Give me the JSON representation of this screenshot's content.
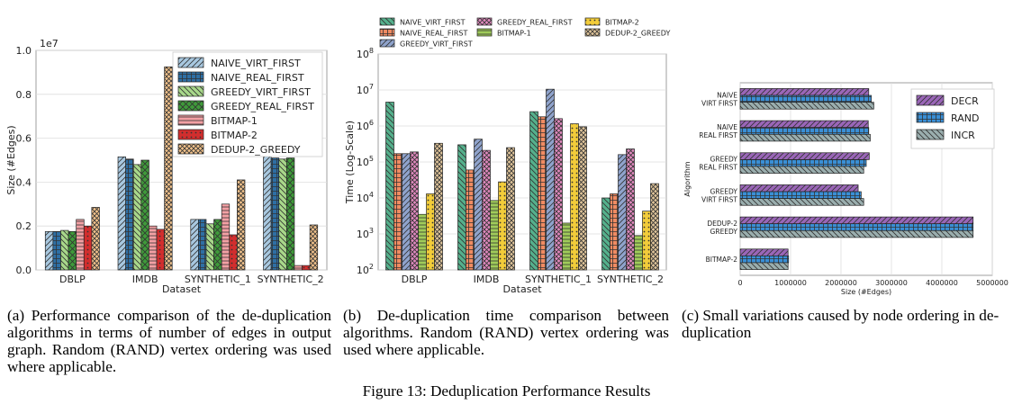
{
  "figure_caption": "Figure 13: Deduplication Performance Results",
  "captions": [
    "(a) Performance comparison of the de-duplication algorithms in terms of number of edges in output graph. Random (RAND) vertex ordering was used where applicable.",
    "(b) De-duplication time comparison between algorithms. Random (RAND) vertex ordering was used where applicable.",
    "(c) Small variations caused by node ordering in de-duplication"
  ],
  "chart_data": [
    {
      "type": "bar",
      "title": "",
      "xlabel": "Dataset",
      "ylabel": "Size (#Edges)",
      "scale_label": "1e7",
      "ylim": [
        0,
        1.0
      ],
      "yticks": [
        0.0,
        0.2,
        0.4,
        0.6,
        0.8,
        1.0
      ],
      "yticklabels": [
        "0.0",
        "0.2",
        "0.4",
        "0.6",
        "0.8",
        "1.0"
      ],
      "grid": true,
      "legend": "top-right",
      "categories": [
        "DBLP",
        "IMDB",
        "SYNTHETIC_1",
        "SYNTHETIC_2"
      ],
      "series": [
        {
          "name": "NAIVE_VIRT_FIRST",
          "values": [
            0.175,
            0.515,
            0.23,
            0.52
          ]
        },
        {
          "name": "NAIVE_REAL_FIRST",
          "values": [
            0.175,
            0.505,
            0.23,
            0.51
          ]
        },
        {
          "name": "GREEDY_VIRT_FIRST",
          "values": [
            0.18,
            0.48,
            0.21,
            0.505
          ]
        },
        {
          "name": "GREEDY_REAL_FIRST",
          "values": [
            0.175,
            0.5,
            0.23,
            0.51
          ]
        },
        {
          "name": "BITMAP-1",
          "values": [
            0.23,
            0.2,
            0.3,
            0.02
          ]
        },
        {
          "name": "BITMAP-2",
          "values": [
            0.2,
            0.185,
            0.16,
            0.02
          ]
        },
        {
          "name": "DEDUP-2_GREEDY",
          "values": [
            0.285,
            0.925,
            0.41,
            0.205
          ]
        }
      ]
    },
    {
      "type": "bar",
      "title": "",
      "xlabel": "Dataset",
      "ylabel": "Time (Log-Scale)",
      "scale": "log",
      "ylim": [
        100,
        100000000
      ],
      "yticklabels": [
        "10^2",
        "10^3",
        "10^4",
        "10^5",
        "10^6",
        "10^7",
        "10^8"
      ],
      "grid": true,
      "legend": "top",
      "categories": [
        "DBLP",
        "IMDB",
        "SYNTHETIC_1",
        "SYNTHETIC_2"
      ],
      "series": [
        {
          "name": "NAIVE_VIRT_FIRST",
          "values": [
            4600000,
            300000,
            2500000,
            10000
          ]
        },
        {
          "name": "NAIVE_REAL_FIRST",
          "values": [
            170000,
            60000,
            1800000,
            13000
          ]
        },
        {
          "name": "GREEDY_VIRT_FIRST",
          "values": [
            170000,
            430000,
            10500000,
            160000
          ]
        },
        {
          "name": "GREEDY_REAL_FIRST",
          "values": [
            190000,
            210000,
            1600000,
            230000
          ]
        },
        {
          "name": "BITMAP-1",
          "values": [
            3500,
            8500,
            2000,
            900
          ]
        },
        {
          "name": "BITMAP-2",
          "values": [
            13000,
            28000,
            1150000,
            4300
          ]
        },
        {
          "name": "DEDUP-2_GREEDY",
          "values": [
            330000,
            250000,
            950000,
            25000
          ]
        }
      ]
    },
    {
      "type": "bar",
      "orientation": "horizontal",
      "title": "",
      "xlabel": "Size (#Edges)",
      "ylabel": "Algorithm",
      "xlim": [
        0,
        5000000
      ],
      "xticks": [
        0,
        1000000,
        2000000,
        3000000,
        4000000,
        5000000
      ],
      "xticklabels": [
        "0",
        "1000000",
        "2000000",
        "3000000",
        "4000000",
        "5000000"
      ],
      "grid": true,
      "legend": "top-right",
      "categories": [
        [
          "NAIVE",
          "VIRT FIRST"
        ],
        [
          "NAIVE",
          "REAL FIRST"
        ],
        [
          "GREEDY",
          "REAL FIRST"
        ],
        [
          "GREEDY",
          "VIRT FIRST"
        ],
        [
          "DEDUP-2",
          "GREEDY"
        ],
        [
          "BITMAP-2"
        ]
      ],
      "series": [
        {
          "name": "DECR",
          "values": [
            2550000,
            2540000,
            2560000,
            2340000,
            4620000,
            950000
          ]
        },
        {
          "name": "RAND",
          "values": [
            2600000,
            2550000,
            2500000,
            2400000,
            4620000,
            960000
          ]
        },
        {
          "name": "INCR",
          "values": [
            2650000,
            2580000,
            2450000,
            2450000,
            4620000,
            950000
          ]
        }
      ]
    }
  ],
  "colors": {
    "NAIVE_VIRT_FIRST": "#a8c8e0",
    "NAIVE_REAL_FIRST": "#2e6fa4",
    "GREEDY_VIRT_FIRST": "#a8d88a",
    "GREEDY_REAL_FIRST": "#3f9a3a",
    "BITMAP-1": "#f3a0a4",
    "BITMAP-2": "#d22e2e",
    "DEDUP-2_GREEDY": "#f3c38c",
    "b_NAIVE_VIRT_FIRST": "#55b08c",
    "b_NAIVE_REAL_FIRST": "#f08b62",
    "b_GREEDY_VIRT_FIRST": "#8fa3cc",
    "b_GREEDY_REAL_FIRST": "#e38ac0",
    "b_BITMAP-1": "#a0cc5a",
    "b_BITMAP-2": "#f2cc3a",
    "b_DEDUP-2_GREEDY": "#e0c59a",
    "DECR": "#9a66b8",
    "RAND": "#3a8fd6",
    "INCR": "#9aaeae"
  }
}
